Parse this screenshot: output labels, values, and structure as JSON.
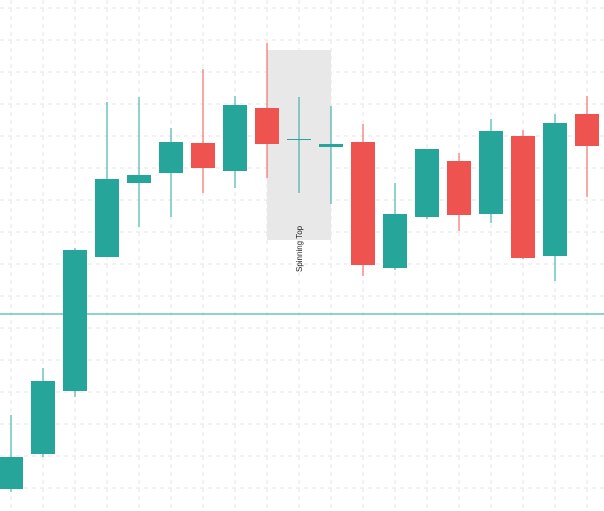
{
  "chart_data": {
    "type": "candlestick",
    "open": [
      22,
      57,
      120,
      254,
      328,
      338,
      368,
      340,
      403,
      371,
      364,
      369,
      243,
      294,
      350,
      297,
      375,
      255,
      397
    ],
    "high": [
      96,
      143,
      263,
      409,
      414,
      383,
      442,
      415,
      468,
      414,
      405,
      387,
      328,
      362,
      358,
      392,
      381,
      397,
      415
    ],
    "low": [
      19,
      54,
      114,
      254,
      284,
      294,
      318,
      323,
      333,
      318,
      307,
      235,
      241,
      292,
      280,
      288,
      252,
      230,
      314
    ],
    "close": [
      54,
      130,
      261,
      332,
      336,
      369,
      343,
      406,
      367,
      372,
      367,
      246,
      297,
      362,
      296,
      380,
      253,
      388,
      365
    ],
    "up_color": "#26a69a",
    "down_color": "#ef5350",
    "ylim": [
      0,
      511
    ],
    "yticks": [
      23,
      55,
      87,
      119,
      151,
      183,
      215,
      247,
      279,
      311,
      343,
      375,
      407,
      439,
      471,
      503
    ],
    "grid": true,
    "price_line": 197,
    "annotation": {
      "text": "Spinning Top",
      "range": [
        271,
        461
      ]
    }
  }
}
